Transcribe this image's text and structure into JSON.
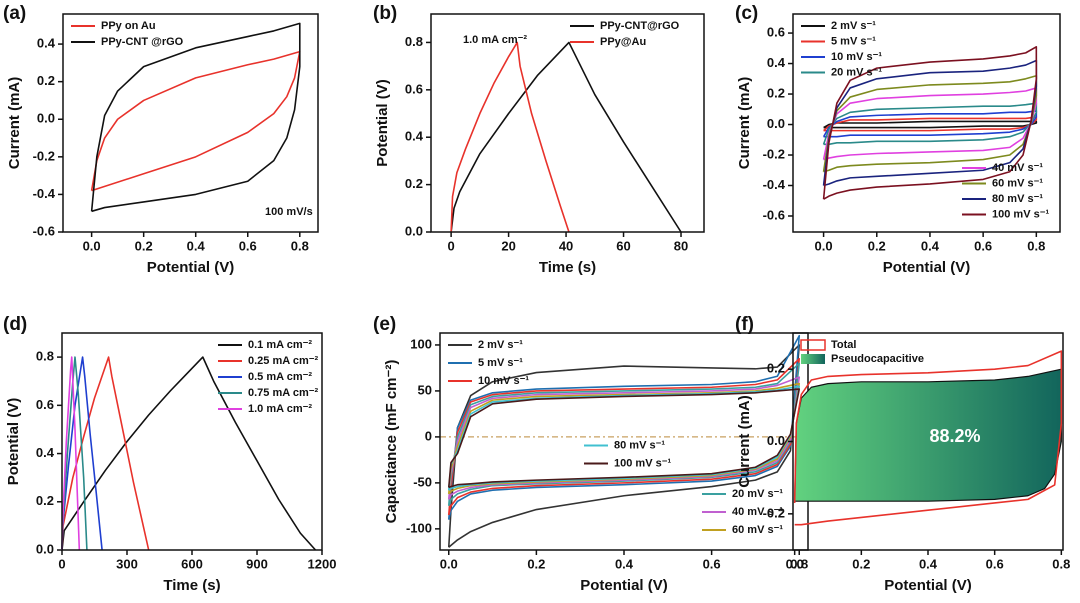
{
  "chart_data": [
    {
      "type": "line",
      "label": "(a)",
      "xlabel": "Potential (V)",
      "ylabel": "Current (mA)",
      "annotation": "100 mV/s",
      "xlim": [
        -0.11,
        0.87
      ],
      "ylim": [
        -0.6,
        0.56
      ],
      "xticks": [
        {
          "value": 0,
          "label": "0.0"
        },
        0.2,
        0.4,
        0.6,
        0.8
      ],
      "yticks": [
        -0.6,
        -0.4,
        -0.2,
        {
          "value": 0,
          "label": "0.0"
        },
        0.2,
        0.4
      ],
      "legend": "upper left",
      "series": [
        {
          "name": "PPy on Au",
          "color": "#e8322b",
          "x": [
            0,
            0.02,
            0.05,
            0.1,
            0.2,
            0.4,
            0.6,
            0.7,
            0.8,
            0.78,
            0.75,
            0.7,
            0.6,
            0.4,
            0.2,
            0
          ],
          "values": [
            -0.38,
            -0.22,
            -0.1,
            0,
            0.1,
            0.22,
            0.29,
            0.32,
            0.36,
            0.22,
            0.12,
            0.03,
            -0.07,
            -0.2,
            -0.29,
            -0.38
          ]
        },
        {
          "name": "PPy-CNT @rGO",
          "color": "#111111",
          "x": [
            0,
            0.02,
            0.05,
            0.1,
            0.2,
            0.4,
            0.6,
            0.7,
            0.8,
            0.8,
            0.78,
            0.75,
            0.7,
            0.6,
            0.4,
            0.2,
            0.05,
            0
          ],
          "values": [
            -0.49,
            -0.2,
            0.02,
            0.15,
            0.28,
            0.38,
            0.44,
            0.47,
            0.51,
            0.28,
            0.05,
            -0.1,
            -0.22,
            -0.33,
            -0.4,
            -0.44,
            -0.47,
            -0.49
          ]
        }
      ]
    },
    {
      "type": "line",
      "label": "(b)",
      "xlabel": "Time (s)",
      "ylabel": "Potential (V)",
      "annotation": "1.0 mA cm⁻²",
      "xlim": [
        -7,
        88
      ],
      "ylim": [
        0,
        0.92
      ],
      "xticks": [
        0,
        20,
        40,
        60,
        80
      ],
      "yticks": [
        {
          "value": 0,
          "label": "0.0"
        },
        0.2,
        0.4,
        0.6,
        0.8
      ],
      "legend": "upper right",
      "series": [
        {
          "name": "PPy-CNT@rGO",
          "color": "#111111",
          "x": [
            0,
            1,
            3,
            10,
            20,
            30,
            41,
            50,
            60,
            70,
            80
          ],
          "values": [
            0,
            0.1,
            0.17,
            0.33,
            0.5,
            0.66,
            0.8,
            0.58,
            0.38,
            0.19,
            0
          ]
        },
        {
          "name": "PPy@Au",
          "color": "#e8322b",
          "x": [
            0,
            0.5,
            2,
            5,
            10,
            15,
            20,
            23,
            24,
            28,
            33,
            38,
            41
          ],
          "values": [
            0,
            0.15,
            0.25,
            0.35,
            0.5,
            0.63,
            0.74,
            0.8,
            0.7,
            0.5,
            0.3,
            0.11,
            0
          ]
        }
      ]
    },
    {
      "type": "line",
      "label": "(c)",
      "xlabel": "Potential (V)",
      "ylabel": "Current (mA)",
      "xlim": [
        -0.115,
        0.889
      ],
      "ylim": [
        -0.705,
        0.725
      ],
      "xticks": [
        {
          "value": 0,
          "label": "0.0"
        },
        0.2,
        0.4,
        0.6,
        0.8
      ],
      "yticks": [
        -0.6,
        -0.4,
        -0.2,
        {
          "value": 0,
          "label": "0.0"
        },
        0.2,
        0.4,
        0.6
      ],
      "x": [
        0,
        0.02,
        0.05,
        0.1,
        0.2,
        0.4,
        0.6,
        0.7,
        0.76,
        0.8,
        0.8,
        0.78,
        0.75,
        0.7,
        0.6,
        0.4,
        0.2,
        0.1,
        0.05,
        0.02,
        0
      ],
      "series": [
        {
          "name": "2 mV s⁻¹",
          "color": "#111111",
          "legend": "upper left",
          "values": [
            -0.02,
            0,
            0.01,
            0.01,
            0.01,
            0.02,
            0.02,
            0.02,
            0.02,
            0.02,
            0.01,
            0,
            -0.01,
            -0.01,
            -0.01,
            -0.02,
            -0.02,
            -0.02,
            -0.02,
            -0.02,
            -0.02
          ]
        },
        {
          "name": "5 mV s⁻¹",
          "color": "#e8322b",
          "legend": "upper left",
          "values": [
            -0.04,
            -0.01,
            0.01,
            0.03,
            0.03,
            0.04,
            0.04,
            0.04,
            0.04,
            0.05,
            0.03,
            0,
            -0.02,
            -0.03,
            -0.03,
            -0.04,
            -0.04,
            -0.04,
            -0.04,
            -0.04,
            -0.04
          ]
        },
        {
          "name": "10 mV s⁻¹",
          "color": "#1f3fd0",
          "legend": "upper left",
          "values": [
            -0.08,
            -0.02,
            0.02,
            0.05,
            0.06,
            0.07,
            0.07,
            0.08,
            0.08,
            0.09,
            0.05,
            0,
            -0.03,
            -0.05,
            -0.06,
            -0.07,
            -0.07,
            -0.07,
            -0.08,
            -0.08,
            -0.08
          ]
        },
        {
          "name": "20 mV s⁻¹",
          "color": "#2a8a8a",
          "legend": "upper left",
          "values": [
            -0.13,
            -0.03,
            0.04,
            0.08,
            0.1,
            0.11,
            0.12,
            0.12,
            0.13,
            0.14,
            0.08,
            0.01,
            -0.05,
            -0.08,
            -0.1,
            -0.11,
            -0.11,
            -0.12,
            -0.12,
            -0.13,
            -0.13
          ]
        },
        {
          "name": "40 mV s⁻¹",
          "color": "#e040e0",
          "legend": "lower right",
          "values": [
            -0.23,
            -0.06,
            0.07,
            0.14,
            0.17,
            0.19,
            0.2,
            0.21,
            0.22,
            0.24,
            0.14,
            0.01,
            -0.09,
            -0.15,
            -0.17,
            -0.18,
            -0.19,
            -0.2,
            -0.21,
            -0.22,
            -0.23
          ]
        },
        {
          "name": "60 mV s⁻¹",
          "color": "#7d8a1e",
          "legend": "lower right",
          "values": [
            -0.31,
            -0.08,
            0.09,
            0.18,
            0.23,
            0.26,
            0.27,
            0.28,
            0.3,
            0.32,
            0.19,
            0.01,
            -0.13,
            -0.2,
            -0.23,
            -0.25,
            -0.26,
            -0.27,
            -0.28,
            -0.3,
            -0.31
          ]
        },
        {
          "name": "80 mV s⁻¹",
          "color": "#1a237e",
          "legend": "lower right",
          "values": [
            -0.4,
            -0.1,
            0.11,
            0.24,
            0.3,
            0.34,
            0.35,
            0.37,
            0.39,
            0.42,
            0.25,
            0.02,
            -0.16,
            -0.25,
            -0.3,
            -0.32,
            -0.34,
            -0.35,
            -0.37,
            -0.39,
            -0.4
          ]
        },
        {
          "name": "100 mV s⁻¹",
          "color": "#7b1020",
          "legend": "lower right",
          "values": [
            -0.49,
            -0.12,
            0.14,
            0.29,
            0.37,
            0.41,
            0.43,
            0.45,
            0.47,
            0.51,
            0.3,
            0.02,
            -0.2,
            -0.31,
            -0.36,
            -0.39,
            -0.41,
            -0.43,
            -0.45,
            -0.47,
            -0.49
          ]
        }
      ]
    },
    {
      "type": "line",
      "label": "(d)",
      "xlabel": "Time (s)",
      "ylabel": "Potential (V)",
      "xlim": [
        0,
        1200
      ],
      "ylim": [
        0,
        0.9
      ],
      "xticks": [
        0,
        300,
        600,
        900,
        1200
      ],
      "yticks": [
        {
          "value": 0,
          "label": "0.0"
        },
        0.2,
        0.4,
        0.6,
        0.8
      ],
      "legend": "upper right",
      "series": [
        {
          "name": "0.1 mA cm⁻²",
          "color": "#111111",
          "x": [
            0,
            10,
            100,
            200,
            300,
            400,
            500,
            650,
            700,
            800,
            900,
            1000,
            1100,
            1170
          ],
          "values": [
            0,
            0.08,
            0.2,
            0.33,
            0.45,
            0.56,
            0.66,
            0.8,
            0.7,
            0.53,
            0.37,
            0.21,
            0.07,
            0
          ]
        },
        {
          "name": "0.25 mA cm⁻²",
          "color": "#e8322b",
          "x": [
            0,
            5,
            50,
            100,
            150,
            215,
            230,
            280,
            330,
            380,
            400
          ],
          "values": [
            0,
            0.1,
            0.3,
            0.47,
            0.63,
            0.8,
            0.72,
            0.5,
            0.28,
            0.08,
            0
          ]
        },
        {
          "name": "0.5 mA cm⁻²",
          "color": "#1f3fd0",
          "x": [
            0,
            3,
            30,
            60,
            95,
            105,
            130,
            160,
            185
          ],
          "values": [
            0,
            0.1,
            0.35,
            0.6,
            0.8,
            0.72,
            0.48,
            0.22,
            0
          ]
        },
        {
          "name": "0.75 mA cm⁻²",
          "color": "#2a8a8a",
          "x": [
            0,
            3,
            25,
            50,
            60,
            75,
            100,
            115
          ],
          "values": [
            0,
            0.1,
            0.4,
            0.7,
            0.8,
            0.65,
            0.3,
            0
          ]
        },
        {
          "name": "1.0 mA cm⁻²",
          "color": "#e040e0",
          "x": [
            0,
            2,
            20,
            40,
            45,
            60,
            80
          ],
          "values": [
            0,
            0.1,
            0.45,
            0.75,
            0.8,
            0.5,
            0
          ]
        }
      ]
    },
    {
      "type": "line",
      "label": "(e)",
      "xlabel": "Potential (V)",
      "ylabel": "Capacitance (mF cm⁻²)",
      "xlim": [
        -0.02,
        0.82
      ],
      "ylim": [
        -123,
        113
      ],
      "xticks": [
        {
          "value": 0,
          "label": "0.0"
        },
        0.2,
        0.4,
        0.6,
        0.8
      ],
      "yticks": [
        -100,
        -50,
        0,
        50,
        100
      ],
      "hline": 0,
      "hline_color": "#c8a060",
      "x": [
        0,
        0.005,
        0.02,
        0.05,
        0.1,
        0.2,
        0.4,
        0.6,
        0.7,
        0.75,
        0.8,
        0.8,
        0.78,
        0.75,
        0.7,
        0.6,
        0.4,
        0.2,
        0.1,
        0.05,
        0.02,
        0.005,
        0
      ],
      "series": [
        {
          "name": "2 mV s⁻¹",
          "color": "#333333",
          "legend": "upper left",
          "values": [
            -120,
            -80,
            10,
            45,
            60,
            70,
            77,
            75,
            74,
            76,
            100,
            100,
            -15,
            -38,
            -47,
            -54,
            -64,
            -79,
            -93,
            -103,
            -112,
            -118,
            -120
          ]
        },
        {
          "name": "5 mV s⁻¹",
          "color": "#1f6fb0",
          "legend": "upper left",
          "values": [
            -90,
            -60,
            10,
            40,
            48,
            52,
            55,
            57,
            60,
            66,
            110,
            110,
            -10,
            -32,
            -42,
            -48,
            -52,
            -55,
            -58,
            -62,
            -70,
            -80,
            -90
          ]
        },
        {
          "name": "10 mV s⁻¹",
          "color": "#e8322b",
          "legend": "upper left",
          "values": [
            -85,
            -55,
            5,
            38,
            46,
            50,
            52,
            54,
            57,
            62,
            85,
            85,
            -8,
            -30,
            -40,
            -46,
            -50,
            -53,
            -56,
            -60,
            -66,
            -75,
            -85
          ]
        },
        {
          "name": "20 mV s⁻¹",
          "color": "#3aa0a0",
          "legend": "lower right",
          "values": [
            -75,
            -45,
            0,
            35,
            44,
            48,
            50,
            52,
            54,
            58,
            80,
            80,
            -5,
            -28,
            -38,
            -44,
            -48,
            -51,
            -53,
            -57,
            -62,
            -68,
            -75
          ]
        },
        {
          "name": "40 mV s⁻¹",
          "color": "#c060d0",
          "legend": "lower right",
          "values": [
            -68,
            -40,
            -5,
            32,
            42,
            46,
            48,
            50,
            52,
            56,
            65,
            65,
            -3,
            -26,
            -36,
            -43,
            -47,
            -50,
            -52,
            -55,
            -59,
            -63,
            -68
          ]
        },
        {
          "name": "60 mV s⁻¹",
          "color": "#c0a020",
          "legend": "lower right",
          "values": [
            -62,
            -35,
            -10,
            28,
            40,
            44,
            46,
            48,
            50,
            53,
            58,
            58,
            0,
            -24,
            -35,
            -42,
            -46,
            -49,
            -51,
            -53,
            -56,
            -59,
            -62
          ]
        },
        {
          "name": "80 mV s⁻¹",
          "color": "#40c0d0",
          "legend": "center",
          "values": [
            -58,
            -30,
            -15,
            25,
            38,
            42,
            45,
            47,
            49,
            51,
            55,
            55,
            2,
            -22,
            -34,
            -41,
            -45,
            -48,
            -50,
            -52,
            -54,
            -56,
            -58
          ]
        },
        {
          "name": "100 mV s⁻¹",
          "color": "#4a1a1a",
          "legend": "center",
          "values": [
            -55,
            -28,
            -18,
            22,
            36,
            41,
            44,
            46,
            48,
            50,
            52,
            52,
            3,
            -20,
            -33,
            -40,
            -44,
            -47,
            -49,
            -51,
            -52,
            -54,
            -55
          ]
        }
      ]
    },
    {
      "type": "line",
      "label": "(f)",
      "xlabel": "Potential (V)",
      "ylabel": "Current (mA)",
      "annotation": "88.2%",
      "xlim": [
        -0.005,
        0.805
      ],
      "ylim": [
        -0.3,
        0.3
      ],
      "xticks": [
        {
          "value": 0,
          "label": "0.0"
        },
        0.2,
        0.4,
        0.6,
        0.8
      ],
      "yticks": [
        -0.2,
        {
          "value": 0,
          "label": "0.0"
        },
        0.2
      ],
      "legend": "upper left",
      "legend_swatch": "box",
      "series": [
        {
          "name": "Total",
          "color": "#e8322b",
          "x": [
            0,
            0.005,
            0.02,
            0.05,
            0.1,
            0.2,
            0.4,
            0.6,
            0.7,
            0.8,
            0.8,
            0.78,
            0.7,
            0.6,
            0.4,
            0.2,
            0.1,
            0.02,
            0
          ],
          "values": [
            -0.17,
            0.05,
            0.13,
            0.17,
            0.18,
            0.185,
            0.19,
            0.2,
            0.21,
            0.25,
            0.05,
            -0.12,
            -0.16,
            -0.17,
            -0.19,
            -0.21,
            -0.22,
            -0.23,
            -0.23
          ]
        },
        {
          "name": "Pseudocapacitive",
          "color": "#111111",
          "fill": true,
          "fill_colors": [
            "#62d27f",
            "#12655c"
          ],
          "x": [
            0,
            0.005,
            0.02,
            0.05,
            0.1,
            0.2,
            0.4,
            0.6,
            0.7,
            0.8,
            0.8,
            0.78,
            0.75,
            0.7,
            0.6,
            0.4,
            0.2,
            0.1,
            0
          ],
          "values": [
            -0.165,
            0.05,
            0.12,
            0.15,
            0.16,
            0.165,
            0.165,
            0.17,
            0.18,
            0.2,
            0,
            -0.09,
            -0.13,
            -0.15,
            -0.16,
            -0.165,
            -0.165,
            -0.165,
            -0.165
          ]
        }
      ]
    }
  ]
}
